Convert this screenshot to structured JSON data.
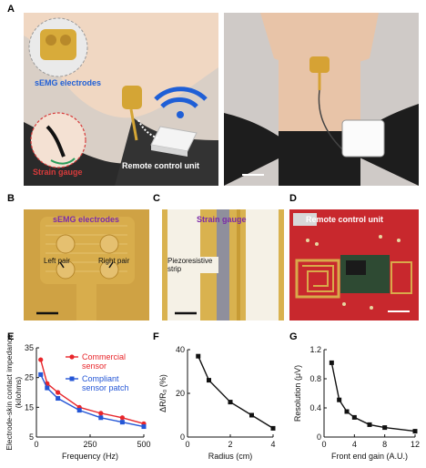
{
  "panel_labels": [
    "A",
    "B",
    "C",
    "D",
    "E",
    "F",
    "G"
  ],
  "panel_a": {
    "label_electrodes": "sEMG electrodes",
    "label_strain": "Strain gauge",
    "label_remote": "Remote control unit"
  },
  "panel_b": {
    "title": "sEMG electrodes",
    "left_pair": "Left pair",
    "right_pair": "Right pair"
  },
  "panel_c": {
    "title": "Strain gauge",
    "strip_label": "Piezoresistive strip"
  },
  "panel_d": {
    "title": "Remote control unit"
  },
  "charts": {
    "e": {
      "type": "line",
      "xlabel": "Frequency (Hz)",
      "ylabel": "Electrode-skin contact impedance (kilohms)",
      "xlim": [
        0,
        500
      ],
      "ylim": [
        5,
        35
      ],
      "xticks": [
        "0",
        "250",
        "500"
      ],
      "yticks": [
        "5",
        "15",
        "25",
        "35"
      ],
      "series": [
        {
          "name": "Commercial sensor",
          "color": "#e8262b",
          "x": [
            20,
            50,
            100,
            200,
            300,
            400,
            500
          ],
          "y": [
            31,
            23,
            20,
            15,
            13,
            11.5,
            9.5
          ]
        },
        {
          "name": "Compliant sensor patch",
          "color": "#2456d6",
          "x": [
            20,
            50,
            100,
            200,
            300,
            400,
            500
          ],
          "y": [
            26,
            21.5,
            18,
            14,
            11.5,
            10,
            8.5
          ]
        }
      ]
    },
    "f": {
      "type": "line",
      "xlabel": "Radius (cm)",
      "ylabel": "ΔR/R₀ (%)",
      "xlim": [
        0,
        4
      ],
      "ylim": [
        0,
        40
      ],
      "xticks": [
        "0",
        "2",
        "4"
      ],
      "yticks": [
        "0",
        "20",
        "40"
      ],
      "series": [
        {
          "color": "#111111",
          "x": [
            0.5,
            1,
            2,
            3,
            4
          ],
          "y": [
            37,
            26,
            16,
            10,
            4
          ]
        }
      ]
    },
    "g": {
      "type": "line",
      "xlabel": "Front end gain (A.U.)",
      "ylabel": "Resolution (μV)",
      "xlim": [
        0,
        12
      ],
      "ylim": [
        0,
        1.2
      ],
      "xticks": [
        "0",
        "4",
        "8",
        "12"
      ],
      "yticks": [
        "0",
        "0.4",
        "0.8",
        "1.2"
      ],
      "series": [
        {
          "color": "#111111",
          "x": [
            1,
            2,
            3,
            4,
            6,
            8,
            12
          ],
          "y": [
            1.02,
            0.51,
            0.35,
            0.27,
            0.17,
            0.13,
            0.08
          ]
        }
      ]
    }
  },
  "chart_data": [
    {
      "type": "line",
      "title": "",
      "xlabel": "Frequency (Hz)",
      "ylabel": "Electrode-skin contact impedance (kilohms)",
      "xlim": [
        0,
        500
      ],
      "ylim": [
        5,
        35
      ],
      "series": [
        {
          "name": "Commercial sensor",
          "x": [
            20,
            50,
            100,
            200,
            300,
            400,
            500
          ],
          "y": [
            31,
            23,
            20,
            15,
            13,
            11.5,
            9.5
          ]
        },
        {
          "name": "Compliant sensor patch",
          "x": [
            20,
            50,
            100,
            200,
            300,
            400,
            500
          ],
          "y": [
            26,
            21.5,
            18,
            14,
            11.5,
            10,
            8.5
          ]
        }
      ],
      "legend": "top-right"
    },
    {
      "type": "line",
      "title": "",
      "xlabel": "Radius (cm)",
      "ylabel": "ΔR/R₀ (%)",
      "xlim": [
        0,
        4
      ],
      "ylim": [
        0,
        40
      ],
      "series": [
        {
          "x": [
            0.5,
            1,
            2,
            3,
            4
          ],
          "y": [
            37,
            26,
            16,
            10,
            4
          ]
        }
      ]
    },
    {
      "type": "line",
      "title": "",
      "xlabel": "Front end gain (A.U.)",
      "ylabel": "Resolution (μV)",
      "xlim": [
        0,
        12
      ],
      "ylim": [
        0,
        1.2
      ],
      "series": [
        {
          "x": [
            1,
            2,
            3,
            4,
            6,
            8,
            12
          ],
          "y": [
            1.02,
            0.51,
            0.35,
            0.27,
            0.17,
            0.13,
            0.08
          ]
        }
      ]
    }
  ]
}
